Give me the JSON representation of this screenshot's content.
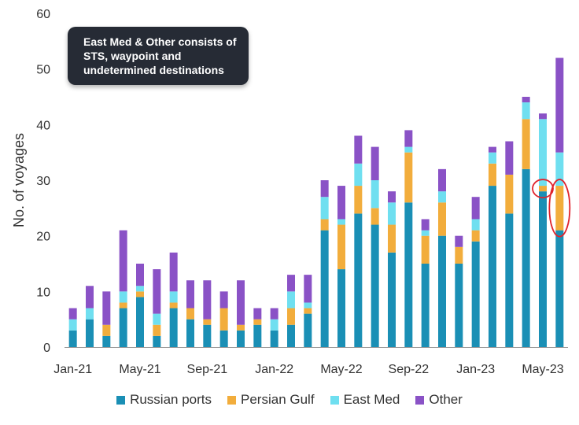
{
  "chart_data": {
    "type": "bar",
    "stacked": true,
    "ylabel": "No. of voyages",
    "ylim": [
      0,
      60
    ],
    "yticks": [
      0,
      10,
      20,
      30,
      40,
      50,
      60
    ],
    "categories": [
      "Jan-21",
      "Feb-21",
      "Mar-21",
      "Apr-21",
      "May-21",
      "Jun-21",
      "Jul-21",
      "Aug-21",
      "Sep-21",
      "Oct-21",
      "Nov-21",
      "Dec-21",
      "Jan-22",
      "Feb-22",
      "Mar-22",
      "Apr-22",
      "May-22",
      "Jun-22",
      "Jul-22",
      "Aug-22",
      "Sep-22",
      "Oct-22",
      "Nov-22",
      "Dec-22",
      "Jan-23",
      "Feb-23",
      "Mar-23",
      "Apr-23",
      "May-23",
      "Jun-23"
    ],
    "tick_labels": [
      {
        "index": 0,
        "label": "Jan-21"
      },
      {
        "index": 4,
        "label": "May-21"
      },
      {
        "index": 8,
        "label": "Sep-21"
      },
      {
        "index": 12,
        "label": "Jan-22"
      },
      {
        "index": 16,
        "label": "May-22"
      },
      {
        "index": 20,
        "label": "Sep-22"
      },
      {
        "index": 24,
        "label": "Jan-23"
      },
      {
        "index": 28,
        "label": "May-23"
      }
    ],
    "series": [
      {
        "name": "Russian ports",
        "color": "#1a8fb5",
        "values": [
          3,
          5,
          2,
          7,
          9,
          2,
          7,
          5,
          4,
          3,
          3,
          4,
          3,
          4,
          6,
          21,
          14,
          24,
          22,
          17,
          26,
          15,
          20,
          15,
          19,
          29,
          24,
          32,
          28,
          21
        ]
      },
      {
        "name": "Persian Gulf",
        "color": "#f2ad3c",
        "values": [
          0,
          0,
          2,
          1,
          1,
          2,
          1,
          2,
          1,
          4,
          1,
          1,
          0,
          3,
          1,
          2,
          8,
          5,
          3,
          5,
          9,
          5,
          6,
          3,
          2,
          4,
          7,
          9,
          1,
          8
        ]
      },
      {
        "name": "East Med",
        "color": "#6fdff0",
        "values": [
          2,
          2,
          0,
          2,
          1,
          2,
          2,
          0,
          0,
          0,
          0,
          0,
          2,
          3,
          1,
          4,
          1,
          4,
          5,
          4,
          1,
          1,
          2,
          0,
          2,
          2,
          0,
          3,
          12,
          6
        ]
      },
      {
        "name": "Other",
        "color": "#8a52c6",
        "values": [
          2,
          4,
          6,
          11,
          4,
          8,
          7,
          5,
          7,
          3,
          8,
          2,
          2,
          3,
          5,
          3,
          6,
          5,
          6,
          2,
          3,
          2,
          4,
          2,
          4,
          1,
          6,
          1,
          1,
          17
        ]
      }
    ],
    "highlighted": [
      {
        "category": "May-23",
        "series": "Persian Gulf"
      },
      {
        "category": "Jun-23",
        "series": "Persian Gulf"
      }
    ],
    "annotation": "East Med & Other consists of STS, waypoint and undetermined destinations"
  }
}
